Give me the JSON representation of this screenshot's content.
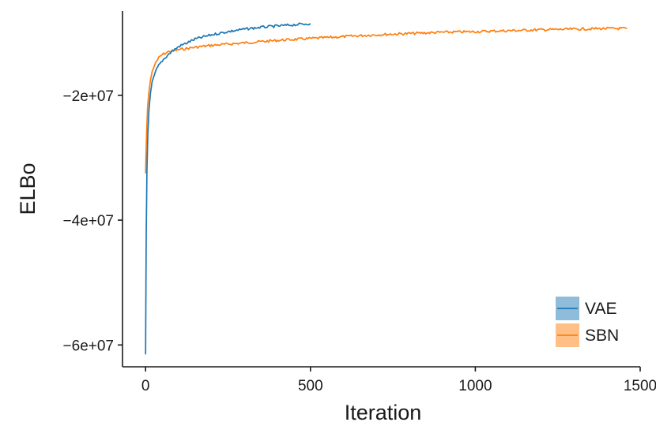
{
  "chart_data": {
    "type": "line",
    "title": "",
    "xlabel": "Iteration",
    "ylabel": "ELBo",
    "xlim": [
      -70,
      1500
    ],
    "ylim": [
      -63500000,
      -6500000
    ],
    "x_ticks": [
      0,
      500,
      1000,
      1500
    ],
    "x_tick_labels": [
      "0",
      "500",
      "1000",
      "1500"
    ],
    "y_ticks": [
      -20000000,
      -40000000,
      -60000000
    ],
    "y_tick_labels": [
      "−2e+07",
      "−4e+07",
      "−6e+07"
    ],
    "grid": false,
    "legend_position": "bottom-right",
    "series": [
      {
        "name": "VAE",
        "color": "#1f77b4",
        "fill": "#8fbcdb",
        "x": [
          0,
          2,
          4,
          7,
          10,
          15,
          20,
          30,
          40,
          50,
          70,
          100,
          150,
          200,
          250,
          300,
          350,
          400,
          450,
          500
        ],
        "values": [
          -61500000,
          -42000000,
          -32000000,
          -26000000,
          -22500000,
          -19500000,
          -17800000,
          -16200000,
          -15200000,
          -14500000,
          -13400000,
          -12200000,
          -11000000,
          -10300000,
          -9800000,
          -9400000,
          -9100000,
          -8900000,
          -8700000,
          -8500000
        ]
      },
      {
        "name": "SBN",
        "color": "#ff7f0e",
        "fill": "#ffbf86",
        "x": [
          0,
          3,
          6,
          10,
          15,
          20,
          30,
          40,
          50,
          70,
          100,
          150,
          200,
          300,
          400,
          500,
          600,
          700,
          800,
          900,
          1000,
          1100,
          1200,
          1300,
          1400,
          1460
        ],
        "values": [
          -32500000,
          -26000000,
          -22000000,
          -19500000,
          -17500000,
          -16200000,
          -14800000,
          -14000000,
          -13500000,
          -13000000,
          -12700000,
          -12300000,
          -12000000,
          -11600000,
          -11200000,
          -10900000,
          -10600000,
          -10300000,
          -10100000,
          -9900000,
          -9800000,
          -9650000,
          -9500000,
          -9400000,
          -9300000,
          -9300000
        ]
      }
    ]
  }
}
